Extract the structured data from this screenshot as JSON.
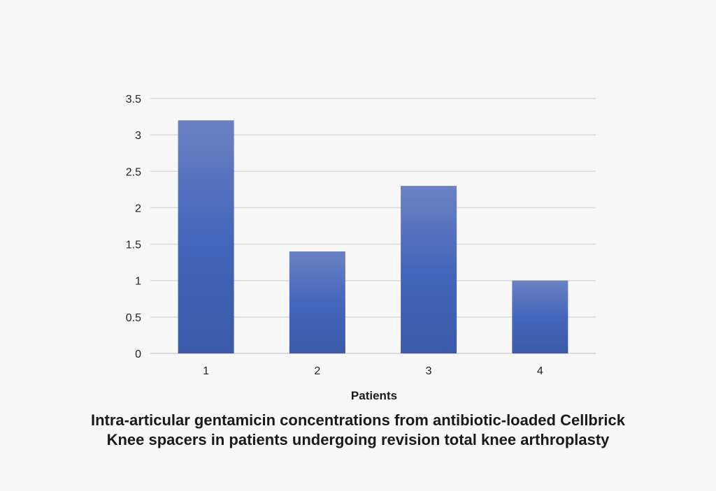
{
  "chart_data": {
    "type": "bar",
    "categories": [
      "1",
      "2",
      "3",
      "4"
    ],
    "values": [
      3.2,
      1.4,
      2.3,
      1.0
    ],
    "ylim": [
      0,
      3.5
    ],
    "yticks": [
      {
        "value": 0,
        "label": "0"
      },
      {
        "value": 0.5,
        "label": "0.5"
      },
      {
        "value": 1,
        "label": "1"
      },
      {
        "value": 1.5,
        "label": "1.5"
      },
      {
        "value": 2,
        "label": "2"
      },
      {
        "value": 2.5,
        "label": "2.5"
      },
      {
        "value": 3,
        "label": "3"
      },
      {
        "value": 3.5,
        "label": "3.5"
      }
    ],
    "xlabel": "Patients",
    "ylabel": "",
    "grid": true,
    "colors": {
      "bar_top": "#6b81c4",
      "bar_mid": "#4466bb",
      "bar_bottom": "#3b5aa8",
      "grid": "#d9d9de"
    }
  },
  "caption": {
    "line1": "Intra-articular gentamicin concentrations from antibiotic-loaded Cellbrick",
    "line2": "Knee spacers in patients undergoing revision total knee arthroplasty"
  }
}
